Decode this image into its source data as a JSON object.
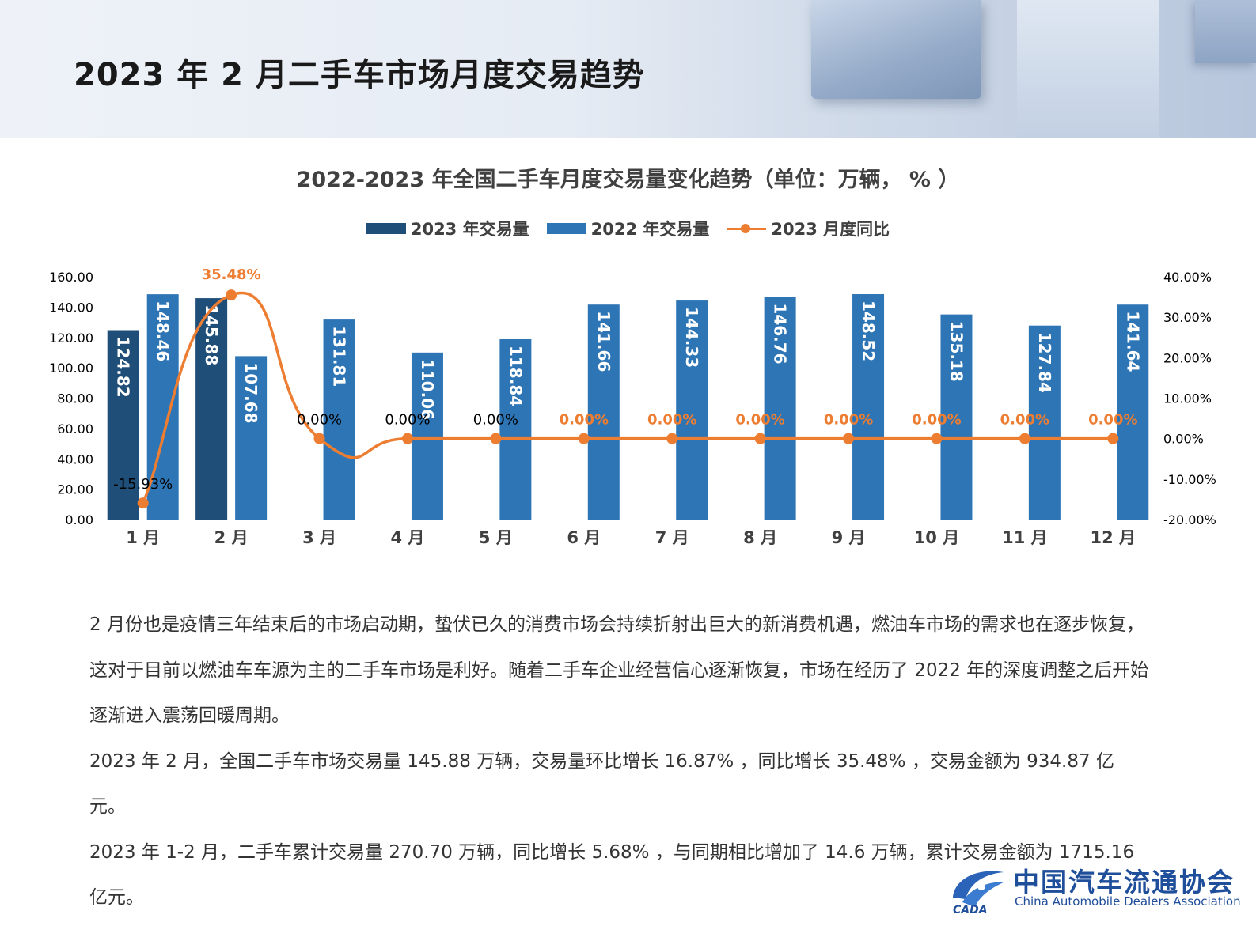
{
  "page": {
    "title": "2023 年 2 月二手车市场月度交易趋势"
  },
  "chart_data": {
    "type": "bar",
    "title": "2022-2023 年全国二手车月度交易量变化趋势（单位：万辆， % ）",
    "categories": [
      "1 月",
      "2 月",
      "3 月",
      "4 月",
      "5 月",
      "6 月",
      "7 月",
      "8 月",
      "9 月",
      "10 月",
      "11 月",
      "12 月"
    ],
    "series": [
      {
        "name": "2023 年交易量",
        "type": "bar",
        "axis": "left",
        "color": "#1f4e79",
        "values": [
          124.82,
          145.88,
          null,
          null,
          null,
          null,
          null,
          null,
          null,
          null,
          null,
          null
        ],
        "labels": [
          "124.82",
          "145.88",
          "",
          "",
          "",
          "",
          "",
          "",
          "",
          "",
          "",
          ""
        ]
      },
      {
        "name": "2022 年交易量",
        "type": "bar",
        "axis": "left",
        "color": "#2e75b6",
        "values": [
          148.46,
          107.68,
          131.81,
          110.06,
          118.84,
          141.66,
          144.33,
          146.76,
          148.52,
          135.18,
          127.84,
          141.64
        ],
        "labels": [
          "148.46",
          "107.68",
          "131.81",
          "110.06",
          "118.84",
          "141.66",
          "144.33",
          "146.76",
          "148.52",
          "135.18",
          "127.84",
          "141.64"
        ]
      },
      {
        "name": "2023 月度同比",
        "type": "line",
        "axis": "right",
        "color": "#ed7d31",
        "values": [
          -15.93,
          35.48,
          0,
          0,
          0,
          0,
          0,
          0,
          0,
          0,
          0,
          0
        ],
        "labels": [
          "-15.93%",
          "35.48%",
          "0.00%",
          "0.00%",
          "0.00%",
          "0.00%",
          "0.00%",
          "0.00%",
          "0.00%",
          "0.00%",
          "0.00%",
          "0.00%"
        ]
      }
    ],
    "y_left": {
      "min": 0,
      "max": 160,
      "ticks": [
        "0.00",
        "20.00",
        "40.00",
        "60.00",
        "80.00",
        "100.00",
        "120.00",
        "140.00",
        "160.00"
      ]
    },
    "y_right": {
      "min": -20,
      "max": 40,
      "ticks": [
        "-20.00%",
        "-10.00%",
        "0.00%",
        "10.00%",
        "20.00%",
        "30.00%",
        "40.00%"
      ]
    },
    "legend_position": "top",
    "grid": false
  },
  "body": {
    "paragraphs": [
      "2 月份也是疫情三年结束后的市场启动期，蛰伏已久的消费市场会持续折射出巨大的新消费机遇，燃油车市场的需求也在逐步恢复，这对于目前以燃油车车源为主的二手车市场是利好。随着二手车企业经营信心逐渐恢复，市场在经历了 2022 年的深度调整之后开始逐渐进入震荡回暖周期。",
      "2023 年 2 月，全国二手车市场交易量 145.88 万辆，交易量环比增长 16.87% ，同比增长 35.48% ，交易金额为 934.87 亿元。",
      "2023 年 1-2 月，二手车累计交易量 270.70 万辆，同比增长 5.68% ，与同期相比增加了 14.6 万辆，累计交易金额为 1715.16 亿元。"
    ]
  },
  "logo": {
    "name_cn": "中国汽车流通协会",
    "name_en": "China Automobile Dealers Association",
    "abbr": "CADA"
  }
}
